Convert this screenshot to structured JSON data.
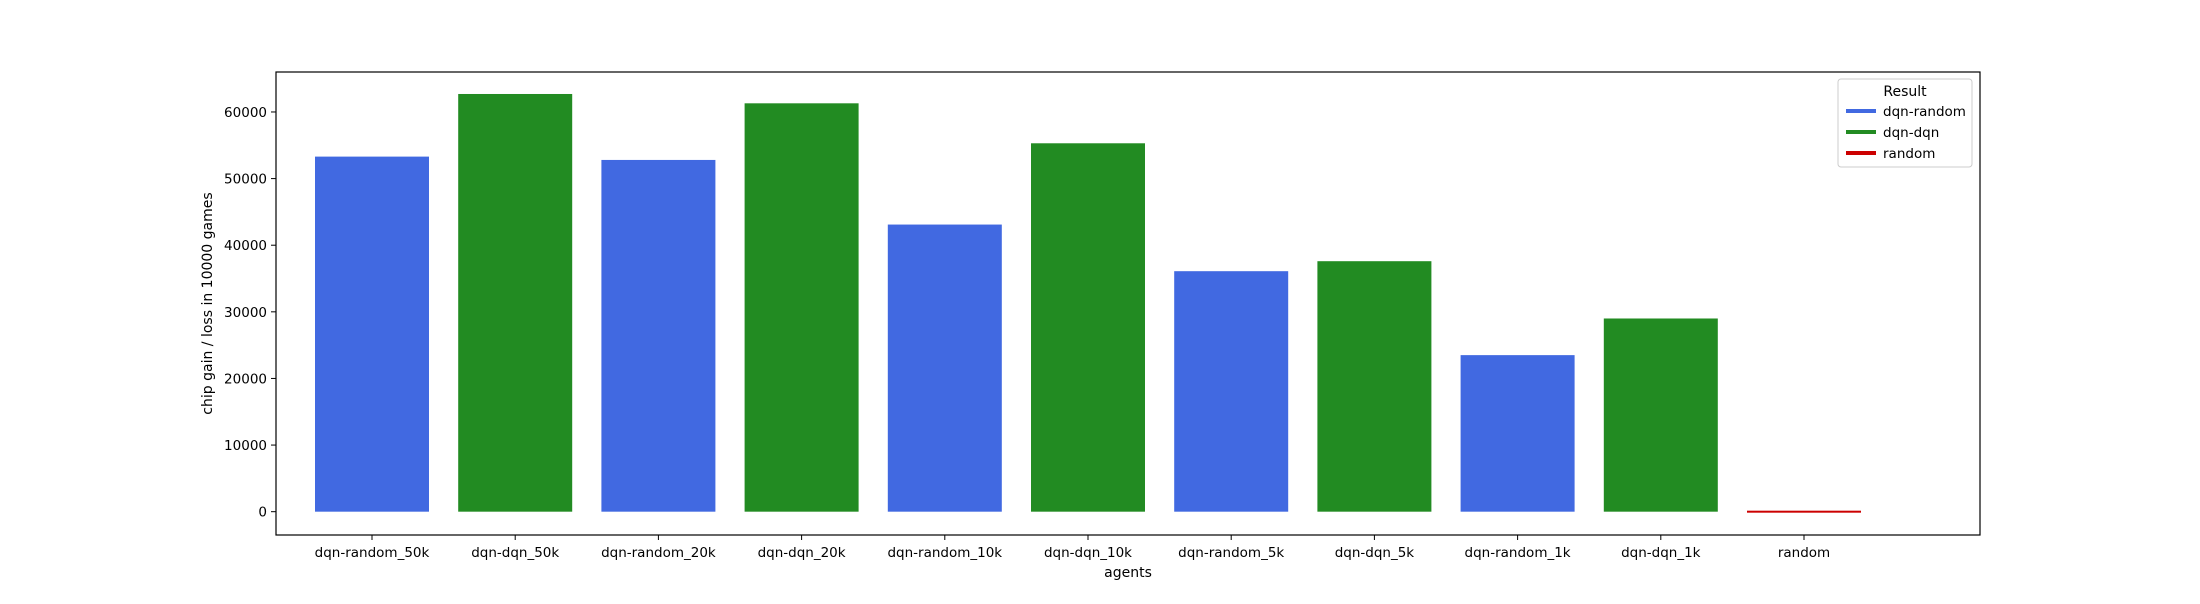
{
  "chart_data": {
    "type": "bar",
    "title": "",
    "xlabel": "agents",
    "ylabel": "chip gain / loss in 10000 games",
    "categories": [
      "dqn-random_50k",
      "dqn-dqn_50k",
      "dqn-random_20k",
      "dqn-dqn_20k",
      "dqn-random_10k",
      "dqn-dqn_10k",
      "dqn-random_5k",
      "dqn-dqn_5k",
      "dqn-random_1k",
      "dqn-dqn_1k",
      "random"
    ],
    "values": [
      53300,
      62700,
      52800,
      61300,
      43100,
      55300,
      36100,
      37600,
      23500,
      29000,
      -200
    ],
    "groups": [
      "dqn-random",
      "dqn-dqn",
      "dqn-random",
      "dqn-dqn",
      "dqn-random",
      "dqn-dqn",
      "dqn-random",
      "dqn-dqn",
      "dqn-random",
      "dqn-dqn",
      "random"
    ],
    "ylim": [
      -3500,
      66000
    ],
    "yticks": [
      0,
      10000,
      20000,
      30000,
      40000,
      50000,
      60000
    ],
    "grid": false,
    "legend": {
      "title": "Result",
      "placement": "top-right",
      "entries": [
        {
          "name": "dqn-random",
          "color": "#4169e1"
        },
        {
          "name": "dqn-dqn",
          "color": "#228b22"
        },
        {
          "name": "random",
          "color": "#cc0000"
        }
      ]
    }
  }
}
